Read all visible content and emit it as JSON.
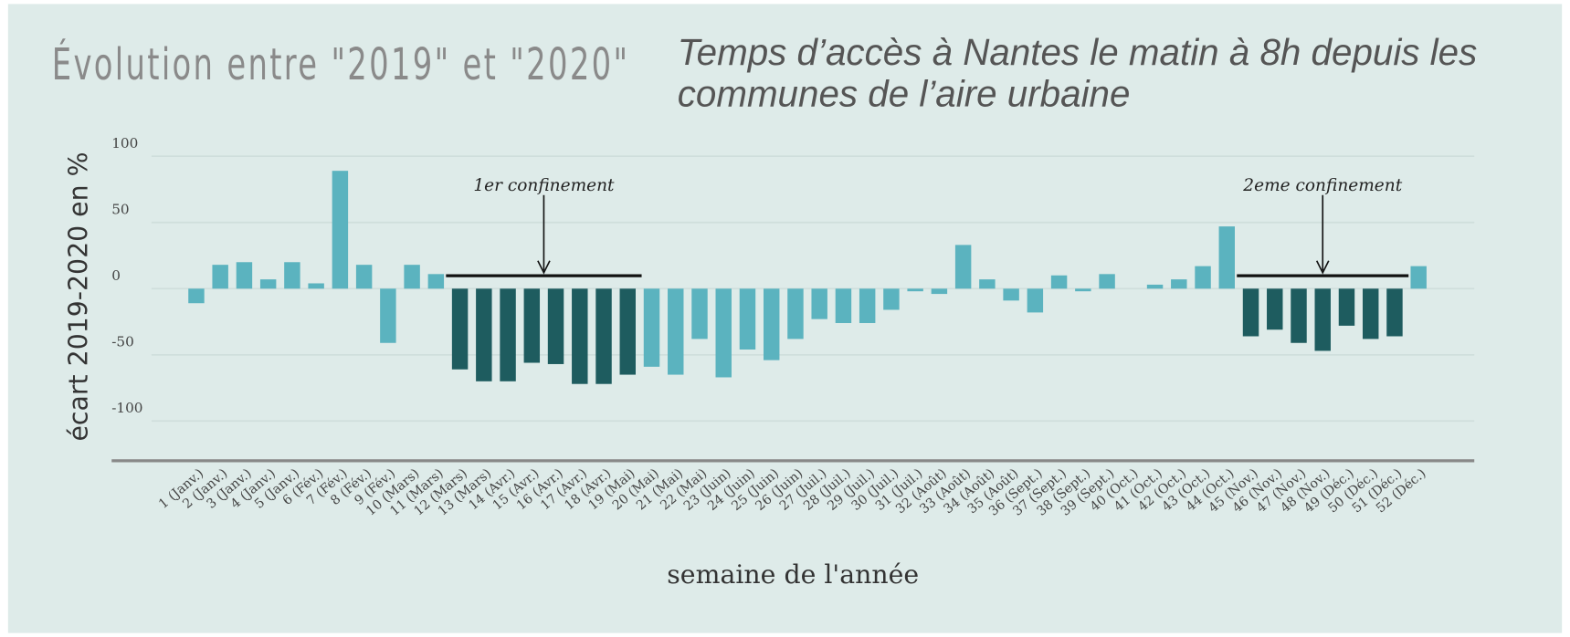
{
  "chart_data": {
    "type": "bar",
    "title": "Évolution entre \"2019\" et \"2020\"",
    "subtitle": "Temps d’accès à Nantes le matin à 8h depuis les communes de l’aire urbaine",
    "ylabel": "écart 2019-2020 en %",
    "xlabel": "semaine de l'année",
    "categories": [
      "1 (Janv.)",
      "2 (Janv.)",
      "3 (Janv.)",
      "4 (Janv.)",
      "5 (Janv.)",
      "6 (Fév.)",
      "7 (Fév.)",
      "8 (Fév.)",
      "9 (Fév.)",
      "10 (Mars)",
      "11 (Mars)",
      "12 (Mars)",
      "13 (Mars)",
      "14 (Avr.)",
      "15 (Avr.)",
      "16 (Avr.)",
      "17 (Avr.)",
      "18 (Avr.)",
      "19 (Mai)",
      "20 (Mai)",
      "21 (Mai)",
      "22 (Mai)",
      "23 (Juin)",
      "24 (Juin)",
      "25 (Juin)",
      "26 (Juin)",
      "27 (Juil.)",
      "28 (Juil.)",
      "29 (Juil.)",
      "30 (Juil.)",
      "31 (Juil.)",
      "32 (Août)",
      "33 (Août)",
      "34 (Août)",
      "35 (Août)",
      "36 (Sept.)",
      "37 (Sept.)",
      "38 (Sept.)",
      "39 (Sept.)",
      "40 (Oct.)",
      "41 (Oct.)",
      "42 (Oct.)",
      "43 (Oct.)",
      "44 (Oct.)",
      "45 (Nov.)",
      "46 (Nov.)",
      "47 (Nov.)",
      "48 (Nov.)",
      "49 (Déc.)",
      "50 (Déc.)",
      "51 (Déc.)",
      "52 (Déc.)"
    ],
    "values": [
      -11,
      18,
      20,
      7,
      20,
      4,
      89,
      18,
      -41,
      18,
      11,
      -61,
      -70,
      -70,
      -56,
      -57,
      -72,
      -72,
      -65,
      -59,
      -65,
      -38,
      -67,
      -46,
      -54,
      -38,
      -23,
      -26,
      -26,
      -16,
      -2,
      -4,
      33,
      7,
      -9,
      -18,
      10,
      -2,
      11,
      0,
      3,
      7,
      17,
      47,
      -36,
      -31,
      -41,
      -47,
      -28,
      -38,
      -36,
      17
    ],
    "colors": [
      "#5bb3bf",
      "#5bb3bf",
      "#5bb3bf",
      "#5bb3bf",
      "#5bb3bf",
      "#5bb3bf",
      "#5bb3bf",
      "#5bb3bf",
      "#5bb3bf",
      "#5bb3bf",
      "#5bb3bf",
      "#1e5c5f",
      "#1e5c5f",
      "#1e5c5f",
      "#1e5c5f",
      "#1e5c5f",
      "#1e5c5f",
      "#1e5c5f",
      "#1e5c5f",
      "#5bb3bf",
      "#5bb3bf",
      "#5bb3bf",
      "#5bb3bf",
      "#5bb3bf",
      "#5bb3bf",
      "#5bb3bf",
      "#5bb3bf",
      "#5bb3bf",
      "#5bb3bf",
      "#5bb3bf",
      "#5bb3bf",
      "#5bb3bf",
      "#5bb3bf",
      "#5bb3bf",
      "#5bb3bf",
      "#5bb3bf",
      "#5bb3bf",
      "#5bb3bf",
      "#5bb3bf",
      "#5bb3bf",
      "#5bb3bf",
      "#5bb3bf",
      "#5bb3bf",
      "#5bb3bf",
      "#1e5c5f",
      "#1e5c5f",
      "#1e5c5f",
      "#1e5c5f",
      "#1e5c5f",
      "#1e5c5f",
      "#1e5c5f",
      "#5bb3bf"
    ],
    "ylim": [
      -130,
      105
    ],
    "yticks": [
      100,
      50,
      0,
      -50,
      -100
    ],
    "grid": true,
    "annotations": [
      {
        "text": "1er confinement"
      },
      {
        "text": "2eme confinement"
      }
    ]
  }
}
